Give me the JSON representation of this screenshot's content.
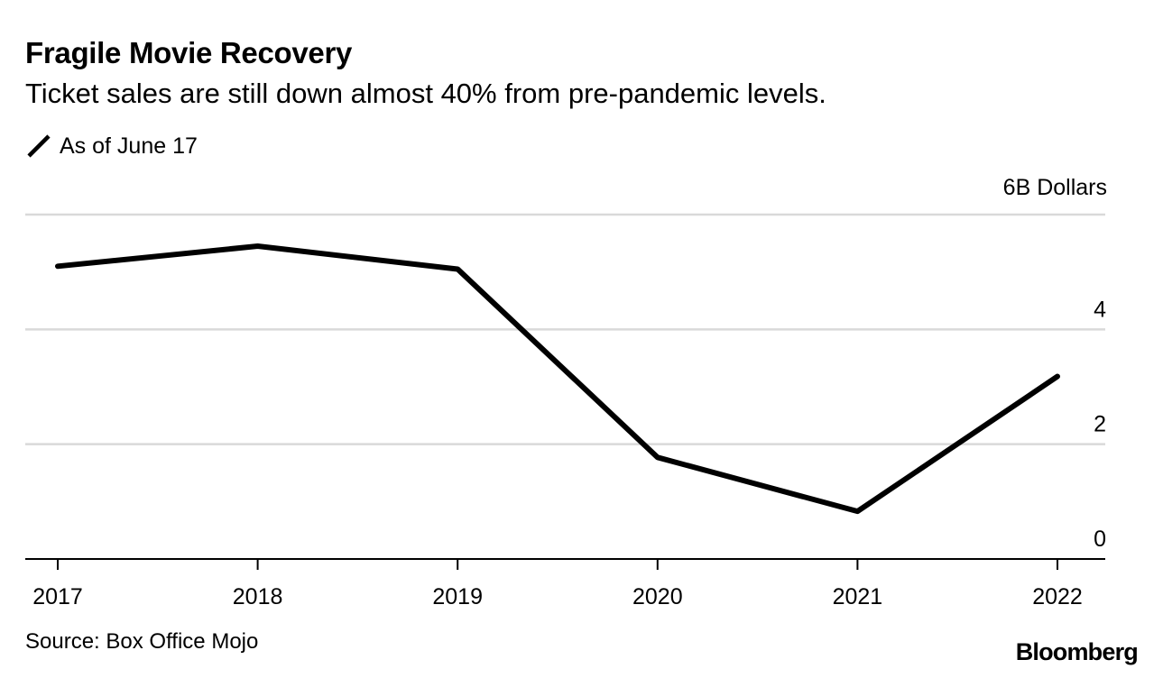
{
  "header": {
    "title": "Fragile Movie Recovery",
    "subtitle": "Ticket sales are still down almost 40% from pre-pandemic levels.",
    "note": "As of June 17",
    "note_icon": "pencil-icon"
  },
  "footer": {
    "source": "Source: Box Office Mojo",
    "brand": "Bloomberg"
  },
  "chart_data": {
    "type": "line",
    "title": "Fragile Movie Recovery",
    "subtitle": "Ticket sales are still down almost 40% from pre-pandemic levels.",
    "unit_label": "6B Dollars",
    "x": [
      "2017",
      "2018",
      "2019",
      "2020",
      "2021",
      "2022"
    ],
    "series": [
      {
        "values": [
          5.1,
          5.45,
          5.05,
          1.77,
          0.83,
          3.18
        ],
        "color": "#000000"
      }
    ],
    "ylim": [
      0,
      6
    ],
    "yticks": [
      0,
      2,
      4,
      6
    ],
    "ytick_labels": [
      "0",
      "2",
      "4",
      "6B Dollars"
    ],
    "grid": true,
    "y_axis_side": "right"
  }
}
